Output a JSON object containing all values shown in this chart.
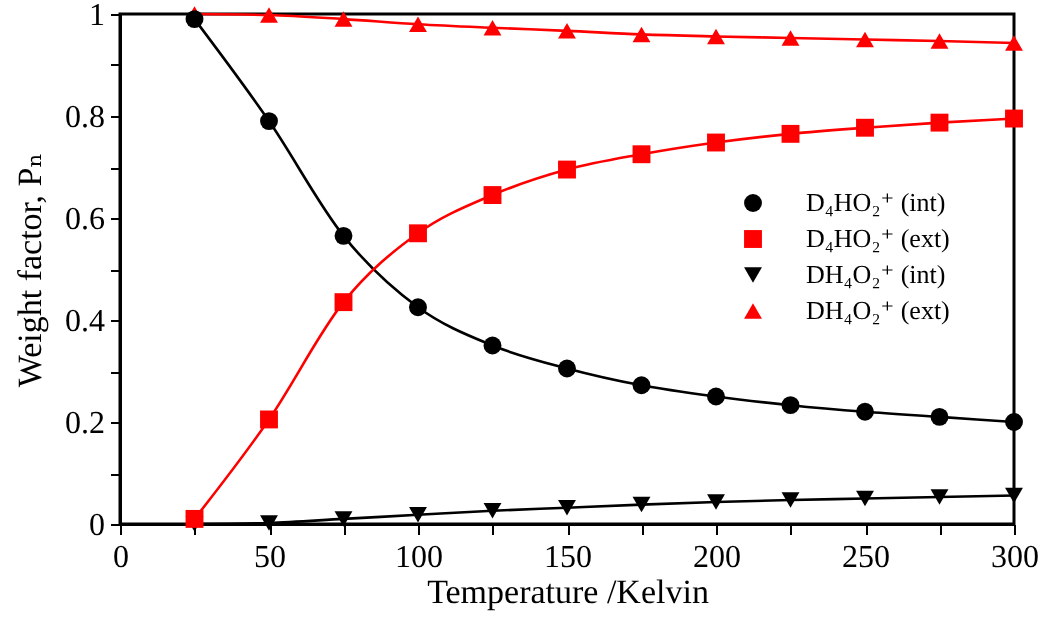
{
  "chart_data": {
    "type": "line",
    "xlabel": "Temperature /Kelvin",
    "ylabel": "Weight factor, Pₙ",
    "x": [
      25,
      50,
      75,
      100,
      125,
      150,
      175,
      200,
      225,
      250,
      275,
      300
    ],
    "xlim": [
      0,
      300
    ],
    "xticks": [
      0,
      {
        "value": 25,
        "label": null
      },
      50,
      {
        "value": 75,
        "label": null
      },
      100,
      {
        "value": 125,
        "label": null
      },
      150,
      {
        "value": 175,
        "label": null
      },
      200,
      {
        "value": 225,
        "label": null
      },
      250,
      {
        "value": 275,
        "label": null
      },
      300
    ],
    "ylim": [
      0,
      1
    ],
    "yticks": [
      0,
      {
        "value": 0.1,
        "label": null
      },
      0.2,
      {
        "value": 0.3,
        "label": null
      },
      0.4,
      {
        "value": 0.5,
        "label": null
      },
      0.6,
      {
        "value": 0.7,
        "label": null
      },
      0.8,
      {
        "value": 0.9,
        "label": null
      },
      1
    ],
    "legend": "right",
    "line_style": "solid",
    "series": [
      {
        "name": "D₄HO₂⁺ (int)",
        "color": "#000000",
        "marker": "circle",
        "values": [
          0.99,
          0.79,
          0.565,
          0.425,
          0.35,
          0.305,
          0.272,
          0.25,
          0.233,
          0.22,
          0.21,
          0.2
        ]
      },
      {
        "name": "D₄HO₂⁺ (ext)",
        "color": "#ff0000",
        "marker": "square",
        "values": [
          0.01,
          0.205,
          0.435,
          0.57,
          0.645,
          0.695,
          0.725,
          0.748,
          0.765,
          0.777,
          0.787,
          0.795
        ]
      },
      {
        "name": "DH₄O₂⁺ (int)",
        "color": "#000000",
        "marker": "triangle-down",
        "values": [
          0.0,
          0.002,
          0.01,
          0.018,
          0.026,
          0.032,
          0.038,
          0.043,
          0.047,
          0.05,
          0.053,
          0.056
        ]
      },
      {
        "name": "DH₄O₂⁺ (ext)",
        "color": "#ff0000",
        "marker": "triangle",
        "values": [
          1.0,
          0.998,
          0.99,
          0.98,
          0.973,
          0.967,
          0.96,
          0.956,
          0.953,
          0.95,
          0.947,
          0.943
        ]
      }
    ]
  }
}
